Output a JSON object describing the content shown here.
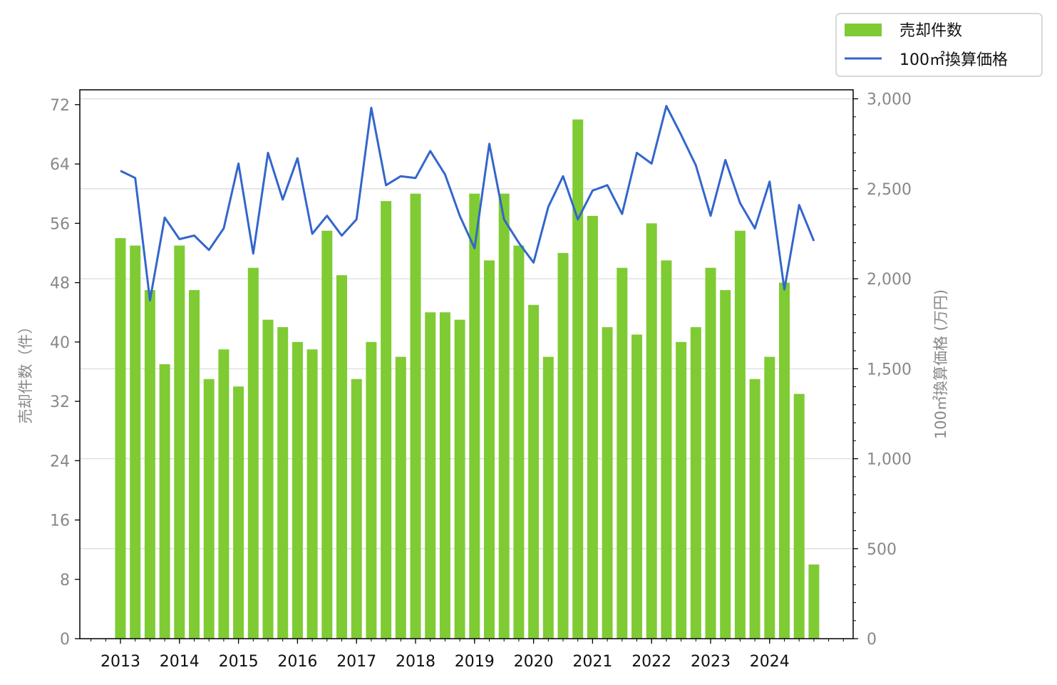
{
  "chart_data": {
    "type": "bar+line",
    "title": "",
    "x_tick_labels": [
      "2013",
      "2014",
      "2015",
      "2016",
      "2017",
      "2018",
      "2019",
      "2020",
      "2021",
      "2022",
      "2023",
      "2024"
    ],
    "periods_per_year": 4,
    "start_year": 2013,
    "series": [
      {
        "name": "売却件数",
        "type": "bar",
        "axis": "left",
        "color": "#7fcb33",
        "values": [
          54,
          53,
          47,
          37,
          53,
          47,
          35,
          39,
          34,
          50,
          43,
          42,
          40,
          39,
          55,
          49,
          35,
          40,
          59,
          38,
          60,
          44,
          44,
          43,
          60,
          51,
          60,
          53,
          45,
          38,
          52,
          70,
          57,
          42,
          50,
          41,
          56,
          51,
          40,
          42,
          50,
          47,
          55,
          35,
          38,
          48,
          33,
          10
        ]
      },
      {
        "name": "100㎡換算価格",
        "type": "line",
        "axis": "right",
        "color": "#3366cc",
        "values": [
          2600,
          2560,
          1880,
          2340,
          2220,
          2240,
          2160,
          2280,
          2640,
          2140,
          2700,
          2440,
          2670,
          2250,
          2350,
          2240,
          2330,
          2950,
          2520,
          2570,
          2560,
          2710,
          2580,
          2350,
          2170,
          2750,
          2330,
          2200,
          2090,
          2400,
          2570,
          2330,
          2490,
          2520,
          2360,
          2700,
          2640,
          2960,
          2800,
          2630,
          2350,
          2660,
          2420,
          2280,
          2540,
          1940,
          2410,
          2210
        ]
      }
    ],
    "y_left": {
      "label": "売却件数（件）",
      "lim": [
        0,
        74
      ],
      "ticks": [
        "0",
        "8",
        "16",
        "24",
        "32",
        "40",
        "48",
        "56",
        "64",
        "72"
      ]
    },
    "y_right": {
      "label": "100㎡換算価格 (万円)",
      "lim": [
        0,
        3050
      ],
      "ticks": [
        "0",
        "500",
        "1,000",
        "1,500",
        "2,000",
        "2,500",
        "3,000"
      ]
    },
    "grid": "horizontal, right axis",
    "legend_position": "top-right, outside axes"
  }
}
